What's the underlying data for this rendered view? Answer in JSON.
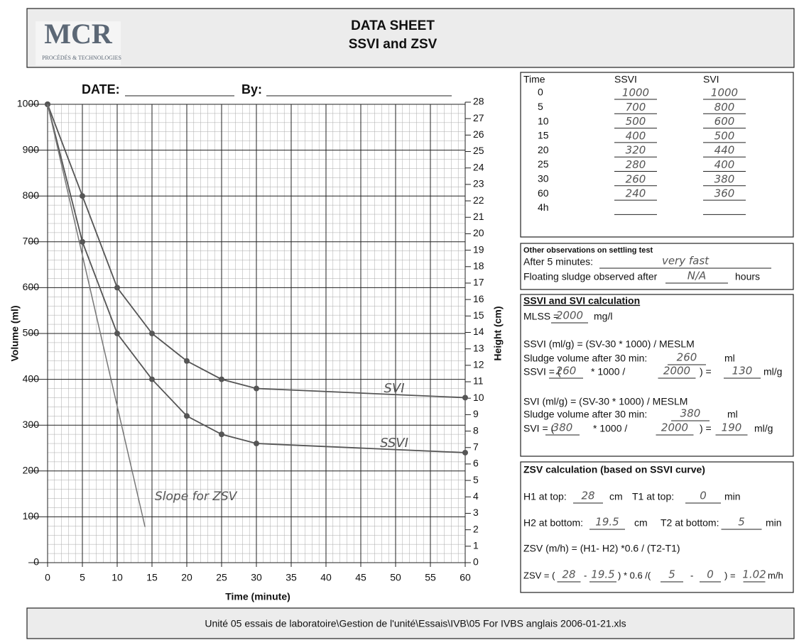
{
  "header": {
    "logo": "MCR",
    "logo_sub": "PROCÉDÉS & TECHNOLOGIES",
    "title": "DATA SHEET",
    "subtitle": "SSVI and ZSV"
  },
  "form": {
    "date_label": "DATE:",
    "by_label": "By:"
  },
  "chart_data": {
    "type": "line",
    "x_label": "Time (minute)",
    "y_label": "Volume (ml)",
    "y2_label": "Height (cm)",
    "x": [
      0,
      5,
      10,
      15,
      20,
      25,
      30,
      60
    ],
    "series": [
      {
        "name": "SSVI",
        "color": "#555555",
        "values": [
          1000,
          700,
          500,
          400,
          320,
          280,
          260,
          240
        ]
      },
      {
        "name": "SVI",
        "color": "#555555",
        "values": [
          1000,
          800,
          600,
          500,
          440,
          400,
          380,
          360
        ]
      }
    ],
    "slope_line": {
      "label": "Slope for ZSV",
      "color": "#777777",
      "x": [
        0,
        14
      ],
      "values": [
        1000,
        78
      ]
    },
    "xlim": [
      0,
      60
    ],
    "xticks": [
      0,
      5,
      10,
      15,
      20,
      25,
      30,
      35,
      40,
      45,
      50,
      55,
      60
    ],
    "ylim": [
      0,
      1000
    ],
    "yticks": [
      0,
      100,
      200,
      300,
      400,
      500,
      600,
      700,
      800,
      900,
      1000
    ],
    "y2lim": [
      0,
      28
    ],
    "y2ticks": [
      0,
      1,
      2,
      3,
      4,
      5,
      6,
      7,
      8,
      9,
      10,
      11,
      12,
      13,
      14,
      15,
      16,
      17,
      18,
      19,
      20,
      21,
      22,
      23,
      24,
      25,
      26,
      27,
      28
    ],
    "grid": true
  },
  "table": {
    "headers": [
      "Time",
      "SSVI",
      "SVI"
    ],
    "rows": [
      [
        0,
        1000,
        1000
      ],
      [
        5,
        700,
        800
      ],
      [
        10,
        500,
        600
      ],
      [
        15,
        400,
        500
      ],
      [
        20,
        320,
        440
      ],
      [
        25,
        280,
        400
      ],
      [
        30,
        260,
        380
      ],
      [
        60,
        240,
        360
      ],
      [
        "4h"
      ]
    ]
  },
  "observations": {
    "title": "Other observations on settling test",
    "after5": [
      "After 5 minutes:",
      "very fast"
    ],
    "floating": [
      "Floating sludge observed after",
      "N/A",
      "hours"
    ]
  },
  "ssvi_calc": {
    "title": "SSVI and SVI calculation",
    "mlss": [
      "MLSS =",
      2000,
      "mg/l"
    ],
    "ssvi_formula": "SSVI (ml/g) =   (SV-30 * 1000) / MESLM",
    "ssvi_volume": [
      "Sludge volume after 30 min:",
      260,
      "ml"
    ],
    "ssvi_result": [
      "SSVI = (",
      260,
      "* 1000 /",
      2000,
      ") =",
      130,
      "ml/g"
    ],
    "svi_formula": "SVI (ml/g) =  (SV-30  * 1000) / MESLM",
    "svi_volume": [
      "Sludge volume after 30 min:",
      380,
      "ml"
    ],
    "svi_result": [
      "SVI = (",
      380,
      "* 1000 /",
      2000,
      ") =",
      190,
      "ml/g"
    ]
  },
  "zsv_calc": {
    "title": "ZSV calculation (based on SSVI curve)",
    "h1": [
      "H1 at top:",
      28,
      "cm",
      "T1 at top:",
      0,
      "min"
    ],
    "h2": [
      "H2 at bottom:",
      19.5,
      "cm",
      "T2 at bottom:",
      5,
      "min"
    ],
    "formula": "ZSV (m/h) =   (H1- H2) *0.6 / (T2-T1)",
    "result": [
      "ZSV = (",
      28,
      "-",
      19.5,
      ") * 0.6 /(",
      5,
      "-",
      0,
      ") =",
      1.02,
      "m/h"
    ]
  },
  "footer": "Unité 05 essais de laboratoire\\Gestion de l'unité\\Essais\\IVB\\05 For IVBS anglais 2006-01-21.xls"
}
